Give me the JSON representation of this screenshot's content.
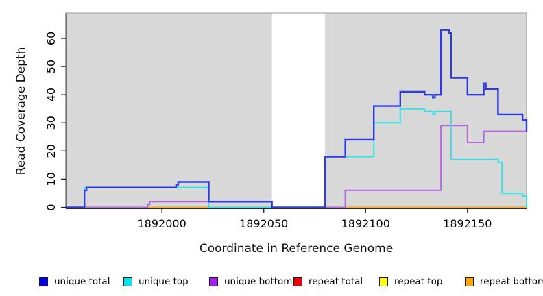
{
  "chart_data": {
    "type": "line",
    "subtype": "step",
    "title": "",
    "xlabel": "Coordinate in Reference Genome",
    "ylabel": "Read Coverage Depth",
    "xlim": [
      1891953,
      1892179
    ],
    "ylim": [
      0,
      69
    ],
    "x_ticks": [
      1892000,
      1892050,
      1892100,
      1892150
    ],
    "y_ticks": [
      0,
      10,
      20,
      30,
      40,
      50,
      60
    ],
    "grid": false,
    "legend_position": "bottom",
    "panel_bg": "#d8d8d8",
    "panel_border": "#9b9b9b",
    "masked_region": {
      "start": 1892054,
      "end": 1892080,
      "color": "#ffffff"
    },
    "series": [
      {
        "name": "repeat total",
        "color": "#ee0000",
        "line_color": "#d04545",
        "steps": [
          [
            1891953,
            0
          ]
        ]
      },
      {
        "name": "repeat top",
        "color": "#ffff00",
        "line_color": "#f0f000",
        "steps": [
          [
            1891953,
            0
          ]
        ]
      },
      {
        "name": "repeat bottom",
        "color": "#ffa500",
        "line_color": "#ffa317",
        "steps": [
          [
            1891953,
            0
          ]
        ]
      },
      {
        "name": "unique bottom",
        "color": "#a020f0",
        "line_color": "#b168dd",
        "steps": [
          [
            1891953,
            0
          ],
          [
            1891993,
            1
          ],
          [
            1891994,
            2
          ],
          [
            1892054,
            0
          ],
          [
            1892090,
            6
          ],
          [
            1892137,
            29
          ],
          [
            1892150,
            23
          ],
          [
            1892158,
            27
          ]
        ]
      },
      {
        "name": "unique top",
        "color": "#00e5ee",
        "line_color": "#35dfe6",
        "steps": [
          [
            1891953,
            0
          ],
          [
            1891962,
            7
          ],
          [
            1892023,
            0
          ],
          [
            1892080,
            18
          ],
          [
            1892104,
            30
          ],
          [
            1892117,
            35
          ],
          [
            1892129,
            34
          ],
          [
            1892133,
            33
          ],
          [
            1892134,
            34
          ],
          [
            1892142,
            17
          ],
          [
            1892165,
            16
          ],
          [
            1892167,
            5
          ],
          [
            1892177,
            4
          ],
          [
            1892179,
            0
          ]
        ]
      },
      {
        "name": "unique total",
        "color": "#0000ee",
        "line_color": "#2d3be2",
        "steps": [
          [
            1891953,
            0
          ],
          [
            1891962,
            6
          ],
          [
            1891963,
            7
          ],
          [
            1892007,
            8
          ],
          [
            1892008,
            9
          ],
          [
            1892023,
            2
          ],
          [
            1892054,
            0
          ],
          [
            1892080,
            18
          ],
          [
            1892090,
            24
          ],
          [
            1892104,
            36
          ],
          [
            1892117,
            41
          ],
          [
            1892129,
            40
          ],
          [
            1892133,
            39
          ],
          [
            1892134,
            40
          ],
          [
            1892137,
            63
          ],
          [
            1892141,
            62
          ],
          [
            1892142,
            46
          ],
          [
            1892150,
            40
          ],
          [
            1892158,
            44
          ],
          [
            1892159,
            42
          ],
          [
            1892165,
            33
          ],
          [
            1892177,
            31
          ],
          [
            1892179,
            27
          ]
        ]
      }
    ],
    "legend_order": [
      "unique total",
      "unique top",
      "unique bottom",
      "repeat total",
      "repeat top",
      "repeat bottom"
    ]
  }
}
